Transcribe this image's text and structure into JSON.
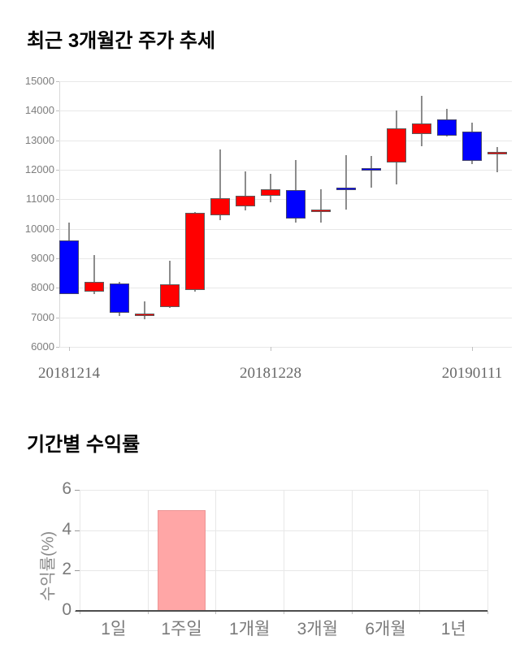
{
  "chart_data": [
    {
      "type": "candlestick",
      "title": "최근 3개월간 주가 추세",
      "ylim": [
        6000,
        15000
      ],
      "y_tick_step": 1000,
      "y_tick_labels": [
        "15000",
        "14000",
        "13000",
        "12000",
        "11000",
        "10000",
        "9000",
        "8000",
        "7000",
        "6000"
      ],
      "x_tick_labels": [
        "20181214",
        "20181228",
        "20190111"
      ],
      "x_tick_candle_indices": [
        0,
        8,
        16
      ],
      "grid": "horizontal",
      "legend": "none",
      "candles": [
        {
          "open": 9600,
          "high": 10200,
          "low": 7780,
          "close": 7800
        },
        {
          "open": 7860,
          "high": 9100,
          "low": 7800,
          "close": 8200
        },
        {
          "open": 8150,
          "high": 8200,
          "low": 7050,
          "close": 7150
        },
        {
          "open": 7060,
          "high": 7530,
          "low": 6930,
          "close": 7140
        },
        {
          "open": 7350,
          "high": 8930,
          "low": 7330,
          "close": 8130
        },
        {
          "open": 7920,
          "high": 10560,
          "low": 7860,
          "close": 10550
        },
        {
          "open": 10470,
          "high": 12700,
          "low": 10300,
          "close": 11050
        },
        {
          "open": 10760,
          "high": 11940,
          "low": 10620,
          "close": 11110
        },
        {
          "open": 11120,
          "high": 11850,
          "low": 10900,
          "close": 11350
        },
        {
          "open": 11300,
          "high": 12330,
          "low": 10210,
          "close": 10350
        },
        {
          "open": 10590,
          "high": 11350,
          "low": 10200,
          "close": 10660
        },
        {
          "open": 11400,
          "high": 12490,
          "low": 10660,
          "close": 11340
        },
        {
          "open": 12050,
          "high": 12470,
          "low": 11400,
          "close": 11980
        },
        {
          "open": 12250,
          "high": 14010,
          "low": 11510,
          "close": 13400
        },
        {
          "open": 13200,
          "high": 14500,
          "low": 12790,
          "close": 13580
        },
        {
          "open": 13700,
          "high": 14060,
          "low": 13140,
          "close": 13150
        },
        {
          "open": 13300,
          "high": 13600,
          "low": 12200,
          "close": 12310
        },
        {
          "open": 12520,
          "high": 12760,
          "low": 11910,
          "close": 12610
        }
      ]
    },
    {
      "type": "bar",
      "title": "기간별 수익률",
      "ylabel": "수익률(%)",
      "ylim": [
        0,
        6
      ],
      "y_ticks": [
        0,
        2,
        4,
        6
      ],
      "categories": [
        "1일",
        "1주일",
        "1개월",
        "3개월",
        "6개월",
        "1년"
      ],
      "values": [
        0,
        5,
        0,
        0,
        0,
        0
      ],
      "grid": "both",
      "legend": "none"
    }
  ],
  "styles": {
    "background": "#ffffff",
    "title_color": "#000000",
    "candle_up_fill": "#ff0000",
    "candle_up_border": "#5c5c5c",
    "candle_down_fill": "#0000ff",
    "candle_down_border": "#44446e",
    "wick_color": "#8c8c8c",
    "grid_color": "#e8e8e8",
    "axis_spine_color": "#d8d8d8",
    "tick_mark_color": "#c0c0c0",
    "price_tick_label_color": "#7d7d7d",
    "date_label_color": "#696969",
    "bar_fill": "#ffa6a6",
    "bar_border": "#ec9595",
    "returns_axis_color": "#4d4d4d",
    "returns_tick_mark_color": "#999999",
    "returns_label_color": "#7a7a7a",
    "returns_ylabel_color": "#8a8a8a"
  }
}
